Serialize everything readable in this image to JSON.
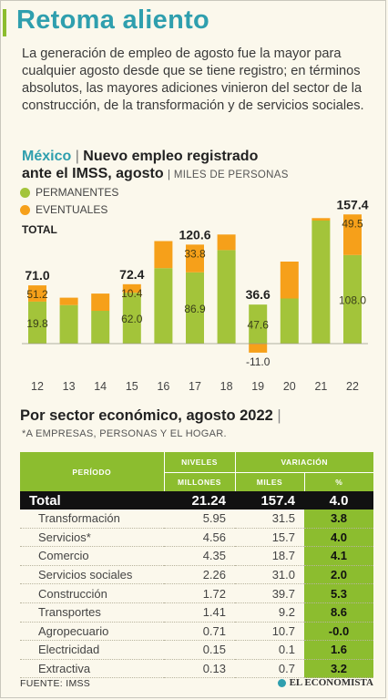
{
  "headline": "Retoma aliento",
  "intro": "La generación de empleo de agosto fue la mayor para cualquier agosto desde que se tiene registro; en términos absolutos, las mayores adiciones vinieron del sector de la construcción, de la transformación y de servicios sociales.",
  "chart_title": {
    "country": "México",
    "sep": " | ",
    "title_a": "Nuevo empleo registrado",
    "title_b": "ante el IMSS, agosto",
    "units": "MILES DE PERSONAS"
  },
  "legend": {
    "permanentes": "PERMANENTES",
    "eventuales": "EVENTUALES",
    "total": "TOTAL"
  },
  "colors": {
    "permanentes": "#a3c43a",
    "eventuales": "#f6a01a",
    "accent": "#8cbd2f",
    "title": "#2f9fae"
  },
  "chart_data": {
    "type": "bar",
    "stacked": true,
    "categories": [
      "12",
      "13",
      "14",
      "15",
      "16",
      "17",
      "18",
      "19",
      "20",
      "21",
      "22"
    ],
    "series": [
      {
        "name": "PERMANENTES",
        "values": [
          51.2,
          47,
          40,
          62.0,
          92,
          86.9,
          114,
          47.6,
          55,
          150,
          108.0
        ]
      },
      {
        "name": "EVENTUALES",
        "values": [
          19.8,
          9,
          21,
          10.4,
          33,
          33.8,
          19,
          -11.0,
          45,
          3,
          49.5
        ]
      }
    ],
    "totals": [
      71.0,
      56,
      61,
      72.4,
      125,
      120.6,
      133,
      36.6,
      100,
      153,
      157.4
    ],
    "bar_labels": [
      {
        "index": 0,
        "total": "71.0",
        "top": "51.2",
        "bottom": "19.8"
      },
      {
        "index": 3,
        "total": "72.4",
        "top": "10.4",
        "bottom": "62.0"
      },
      {
        "index": 5,
        "total": "120.6",
        "top": "33.8",
        "bottom": "86.9"
      },
      {
        "index": 7,
        "total": "36.6",
        "bottom": "47.6",
        "neg": "-11.0"
      },
      {
        "index": 10,
        "total": "157.4",
        "top": "49.5",
        "bottom": "108.0"
      }
    ],
    "ylim": [
      -12,
      160
    ]
  },
  "sector": {
    "title": "Por sector económico, agosto 2022",
    "title_sep": " |",
    "note": "*A EMPRESAS, PERSONAS Y EL HOGAR.",
    "headers": {
      "periodo": "PERÍODO",
      "niveles": "NIVELES",
      "variacion": "VARIACIÓN",
      "millones": "MILLONES",
      "miles": "MILES",
      "pct": "%"
    },
    "total": {
      "name": "Total",
      "niveles": "21.24",
      "miles": "157.4",
      "pct": "4.0"
    },
    "rows": [
      {
        "name": "Transformación",
        "niveles": "5.95",
        "miles": "31.5",
        "pct": "3.8"
      },
      {
        "name": "Servicios*",
        "niveles": "4.56",
        "miles": "15.7",
        "pct": "4.0"
      },
      {
        "name": "Comercio",
        "niveles": "4.35",
        "miles": "18.7",
        "pct": "4.1"
      },
      {
        "name": "Servicios sociales",
        "niveles": "2.26",
        "miles": "31.0",
        "pct": "2.0"
      },
      {
        "name": "Construcción",
        "niveles": "1.72",
        "miles": "39.7",
        "pct": "5.3"
      },
      {
        "name": "Transportes",
        "niveles": "1.41",
        "miles": "9.2",
        "pct": "8.6"
      },
      {
        "name": "Agropecuario",
        "niveles": "0.71",
        "miles": "10.7",
        "pct": "-0.0"
      },
      {
        "name": "Electricidad",
        "niveles": "0.15",
        "miles": "0.1",
        "pct": "1.6"
      },
      {
        "name": "Extractiva",
        "niveles": "0.13",
        "miles": "0.7",
        "pct": "3.2"
      }
    ]
  },
  "source": "FUENTE: IMSS",
  "brand": "EL ECONOMISTA",
  "brand_icon": "globe-dot-icon"
}
